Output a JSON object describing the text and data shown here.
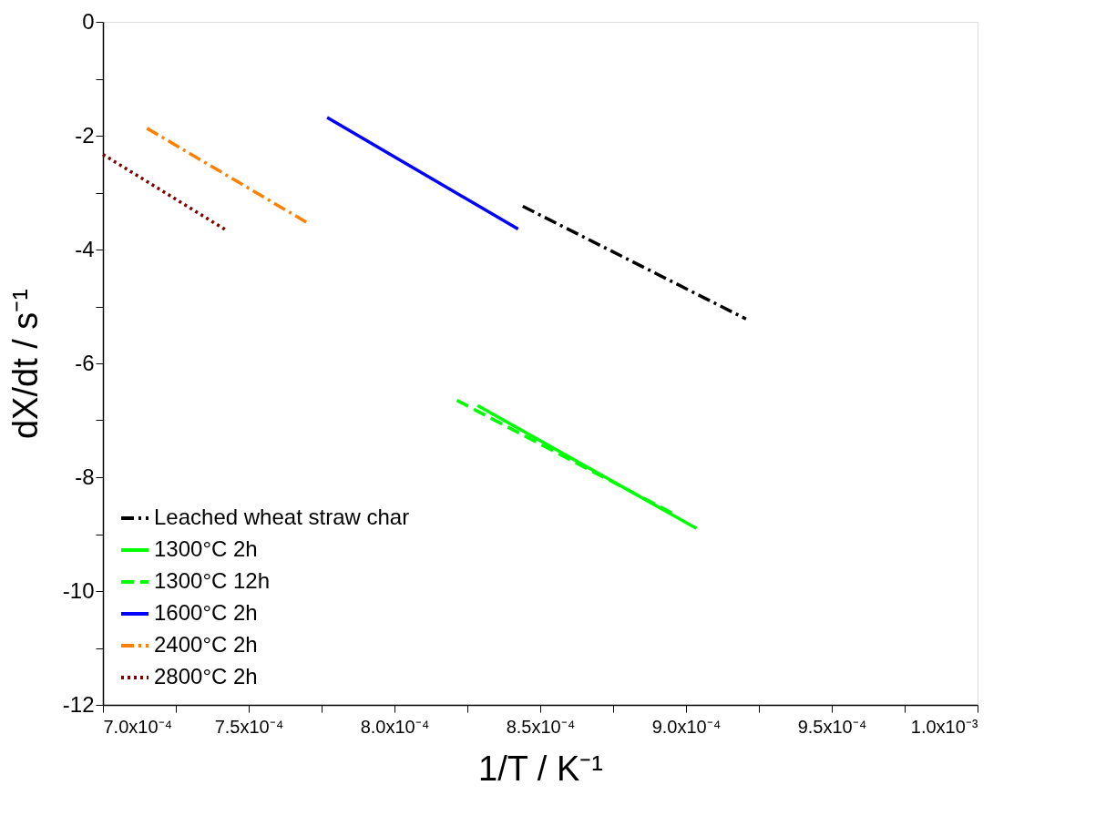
{
  "chart_data": {
    "type": "line",
    "xlabel": "1/T / K⁻¹",
    "ylabel": "dX/dt / s⁻¹",
    "xlim": [
      0.0007,
      0.001
    ],
    "ylim": [
      -12,
      0
    ],
    "xticks": [
      {
        "value": 0.0007,
        "label": "7.0x10⁻⁴"
      },
      {
        "value": 0.000725,
        "label": null
      },
      {
        "value": 0.00075,
        "label": "7.5x10⁻⁴"
      },
      {
        "value": 0.000775,
        "label": null
      },
      {
        "value": 0.0008,
        "label": "8.0x10⁻⁴"
      },
      {
        "value": 0.000825,
        "label": null
      },
      {
        "value": 0.00085,
        "label": "8.5x10⁻⁴"
      },
      {
        "value": 0.000875,
        "label": null
      },
      {
        "value": 0.0009,
        "label": "9.0x10⁻⁴"
      },
      {
        "value": 0.000925,
        "label": null
      },
      {
        "value": 0.00095,
        "label": "9.5x10⁻⁴"
      },
      {
        "value": 0.000975,
        "label": null
      },
      {
        "value": 0.001,
        "label": "1.0x10⁻³"
      }
    ],
    "yticks": [
      0,
      {
        "value": -1,
        "label": null
      },
      -2,
      {
        "value": -3,
        "label": null
      },
      -4,
      {
        "value": -5,
        "label": null
      },
      -6,
      {
        "value": -7,
        "label": null
      },
      -8,
      {
        "value": -9,
        "label": null
      },
      -10,
      {
        "value": -11,
        "label": null
      },
      -12
    ],
    "grid": false,
    "legend": "bottom left",
    "marker": "none",
    "series": [
      {
        "name": "Leached wheat straw char",
        "color": "#000000",
        "line_style": "dashdot",
        "x": [
          0.000844,
          0.0009206
        ],
        "values": [
          -3.24,
          -5.22
        ]
      },
      {
        "name": "1300°C 2h",
        "color": "#00ff00",
        "line_style": "solid",
        "x": [
          0.0008285,
          0.0009036
        ],
        "values": [
          -6.74,
          -8.9
        ]
      },
      {
        "name": "1300°C 12h",
        "color": "#00ff00",
        "line_style": "dashed",
        "x": [
          0.0008214,
          0.0008956
        ],
        "values": [
          -6.65,
          -8.64
        ]
      },
      {
        "name": "1600°C 2h",
        "color": "#0000ff",
        "line_style": "solid",
        "x": [
          0.0007769,
          0.0008424
        ],
        "values": [
          -1.68,
          -3.64
        ]
      },
      {
        "name": "2400°C 2h",
        "color": "#ff8000",
        "line_style": "dashdot",
        "x": [
          0.0007151,
          0.0007711
        ],
        "values": [
          -1.87,
          -3.56
        ]
      },
      {
        "name": "2800°C 2h",
        "color": "#800000",
        "line_style": "dotted",
        "x": [
          0.0007,
          0.0007426
        ],
        "values": [
          -2.33,
          -3.67
        ]
      }
    ]
  }
}
